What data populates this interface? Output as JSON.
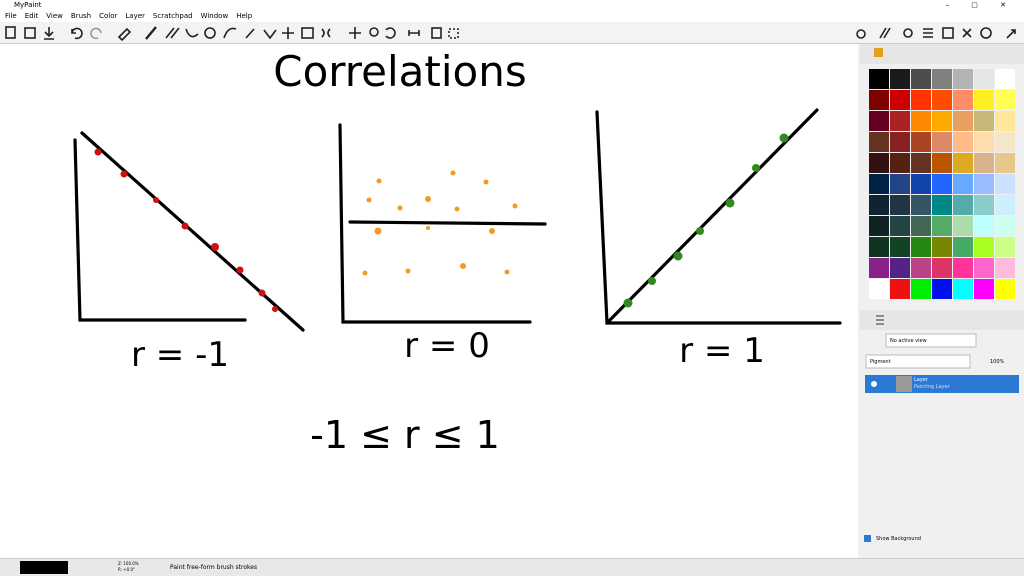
{
  "window": {
    "title": "MyPaint"
  },
  "menu": [
    "File",
    "Edit",
    "View",
    "Brush",
    "Color",
    "Layer",
    "Scratchpad",
    "Window",
    "Help"
  ],
  "canvas": {
    "title": "Correlations",
    "labels": [
      "r = -1",
      "r = 0",
      "r = 1"
    ],
    "formula": "-1 ≤ r ≤ 1"
  },
  "palette": [
    [
      "#000000",
      "#1a1a1a",
      "#4d4d4d",
      "#808080",
      "#b3b3b3",
      "#e6e6e6",
      "#ffffff"
    ],
    [
      "#800000",
      "#cc0000",
      "#ff3300",
      "#ff4d00",
      "#ff8c66",
      "#ffee22",
      "#ffff55"
    ],
    [
      "#660022",
      "#aa2222",
      "#ff8800",
      "#ffaa00",
      "#e8a060",
      "#c8b878",
      "#ffe699"
    ],
    [
      "#663322",
      "#882222",
      "#aa4422",
      "#dd8866",
      "#ffbb88",
      "#ffddaa",
      "#f5e6c8"
    ],
    [
      "#331111",
      "#552211",
      "#663322",
      "#bb5500",
      "#ddaa22",
      "#d9b38c",
      "#e8c88a"
    ],
    [
      "#002244",
      "#224488",
      "#1144aa",
      "#2266ff",
      "#66aaff",
      "#99bbff",
      "#cce0ff"
    ],
    [
      "#112233",
      "#223344",
      "#335566",
      "#008888",
      "#55aaaa",
      "#88cccc",
      "#cceeff"
    ],
    [
      "#112222",
      "#224444",
      "#446655",
      "#55aa66",
      "#aaddaa",
      "#bbffff",
      "#ccffee"
    ],
    [
      "#113322",
      "#114422",
      "#228811",
      "#778800",
      "#44aa66",
      "#aaff22",
      "#ccff88"
    ],
    [
      "#882288",
      "#552288",
      "#bb4488",
      "#dd3366",
      "#ff3399",
      "#ff66cc",
      "#ffbbdd"
    ],
    [
      "#ffffff",
      "#ee1111",
      "#00ee00",
      "#0011ee",
      "#00ffff",
      "#ff00ff",
      "#ffff00"
    ]
  ],
  "layers_panel": {
    "view_mode": "No active view",
    "blend_mode": "Pigment",
    "opacity": "100%",
    "layer": {
      "name": "Layer",
      "type": "Painting Layer"
    },
    "show_background": "Show Background"
  },
  "status": {
    "zoom": "Z: 100.0%",
    "rotation": "R: +0.0°",
    "message": "Paint free-form brush strokes"
  }
}
